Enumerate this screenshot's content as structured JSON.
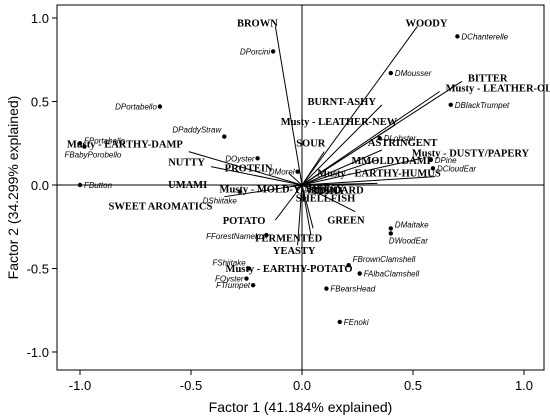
{
  "chart_data": {
    "type": "scatter",
    "subtype": "biplot",
    "xlabel": "Factor 1 (41.184% explained)",
    "ylabel": "Factor 2 (34.299% explained)",
    "xlim": [
      -1.1,
      1.0
    ],
    "ylim": [
      -1.05,
      1.05
    ],
    "xticks": [
      -1.0,
      -0.5,
      0.0,
      0.5,
      1.0
    ],
    "yticks": [
      1.0,
      0.5,
      0.0,
      -0.5,
      -1.0
    ],
    "xtick_labels": [
      "-1.0",
      "-0.5",
      "0.0",
      "0.5",
      "1.0"
    ],
    "ytick_labels": [
      "1.0",
      "0.5",
      "0.0",
      "-0.5",
      "-1.0"
    ],
    "grid": false,
    "reference_lines": [
      "x=0",
      "y=0"
    ],
    "vectors": [
      {
        "label": "BROWN",
        "x": -0.12,
        "y": 0.95
      },
      {
        "label": "WOODY",
        "x": 0.52,
        "y": 0.95
      },
      {
        "label": "BITTER",
        "x": 0.72,
        "y": 0.62
      },
      {
        "label": "Musty - LEATHER-OLD",
        "x": 0.62,
        "y": 0.56
      },
      {
        "label": "BURNT-ASHY",
        "x": 0.36,
        "y": 0.48
      },
      {
        "label": "Musty - LEATHER-NEW",
        "x": 0.42,
        "y": 0.36
      },
      {
        "label": "ASTRINGENT",
        "x": 0.36,
        "y": 0.21
      },
      {
        "label": "SOUR",
        "x": 0.1,
        "y": 0.2
      },
      {
        "label": "MMOLDYDAMP",
        "x": 0.34,
        "y": 0.15
      },
      {
        "label": "Musty - DUSTY/PAPERY",
        "x": 0.54,
        "y": 0.16
      },
      {
        "label": "Musty - EARTHY-HUMUS",
        "x": 0.6,
        "y": 0.05
      },
      {
        "label": "CARDBOARD",
        "x": 0.34,
        "y": 0.01
      },
      {
        "label": "SHELLFISH",
        "x": 0.17,
        "y": -0.05
      },
      {
        "label": "FISHY",
        "x": 0.07,
        "y": 0.0
      },
      {
        "label": "GREEN",
        "x": 0.24,
        "y": -0.16
      },
      {
        "label": "FERMENTED",
        "x": 0.05,
        "y": -0.26
      },
      {
        "label": "YEASTY",
        "x": 0.04,
        "y": -0.3
      },
      {
        "label": "Musty - EARTHY-POTATO",
        "x": -0.02,
        "y": -0.36
      },
      {
        "label": "POTATO",
        "x": -0.12,
        "y": -0.21
      },
      {
        "label": "Musty - MOLD-YCHEESY",
        "x": -0.02,
        "y": -0.02
      },
      {
        "label": "PROTEIN",
        "x": -0.06,
        "y": 0.07
      },
      {
        "label": "SWEET AROMATICS",
        "x": -0.35,
        "y": -0.07
      },
      {
        "label": "UMAMI",
        "x": -0.4,
        "y": 0.0
      },
      {
        "label": "NUTTY",
        "x": -0.41,
        "y": 0.11
      },
      {
        "label": "Musty - EARTHY-DAMP",
        "x": -0.51,
        "y": 0.2
      }
    ],
    "samples": [
      {
        "label": "DChanterelle",
        "x": 0.7,
        "y": 0.89
      },
      {
        "label": "DPorcini",
        "x": -0.13,
        "y": 0.8
      },
      {
        "label": "DMousser",
        "x": 0.4,
        "y": 0.67
      },
      {
        "label": "DBlackTrumpet",
        "x": 0.67,
        "y": 0.48
      },
      {
        "label": "DPortabello",
        "x": -0.64,
        "y": 0.47
      },
      {
        "label": "DLobster",
        "x": 0.35,
        "y": 0.28
      },
      {
        "label": "DPaddyStraw",
        "x": -0.35,
        "y": 0.29
      },
      {
        "label": "DPine",
        "x": 0.58,
        "y": 0.15
      },
      {
        "label": "DOyster",
        "x": -0.2,
        "y": 0.16
      },
      {
        "label": "DCloudEar",
        "x": 0.59,
        "y": 0.1
      },
      {
        "label": "DMorel",
        "x": -0.02,
        "y": 0.08
      },
      {
        "label": "DShiitake",
        "x": -0.28,
        "y": -0.04
      },
      {
        "label": "FPortabello",
        "x": -1.0,
        "y": 0.25
      },
      {
        "label": "FBabyPorobello",
        "x": -0.98,
        "y": 0.23
      },
      {
        "label": "FButton",
        "x": -1.0,
        "y": 0.0
      },
      {
        "label": "DMaitake",
        "x": 0.4,
        "y": -0.26
      },
      {
        "label": "DWoodEar",
        "x": 0.4,
        "y": -0.29
      },
      {
        "label": "FForestNameko",
        "x": -0.16,
        "y": -0.3
      },
      {
        "label": "FShiitake",
        "x": -0.24,
        "y": -0.5
      },
      {
        "label": "FOyster",
        "x": -0.25,
        "y": -0.56
      },
      {
        "label": "FTrumpet",
        "x": -0.22,
        "y": -0.6
      },
      {
        "label": "FBrownClamshell",
        "x": 0.21,
        "y": -0.48
      },
      {
        "label": "FAlbaClamshell",
        "x": 0.26,
        "y": -0.53
      },
      {
        "label": "FBearsHead",
        "x": 0.11,
        "y": -0.62
      },
      {
        "label": "FEnoki",
        "x": 0.17,
        "y": -0.82
      }
    ]
  }
}
